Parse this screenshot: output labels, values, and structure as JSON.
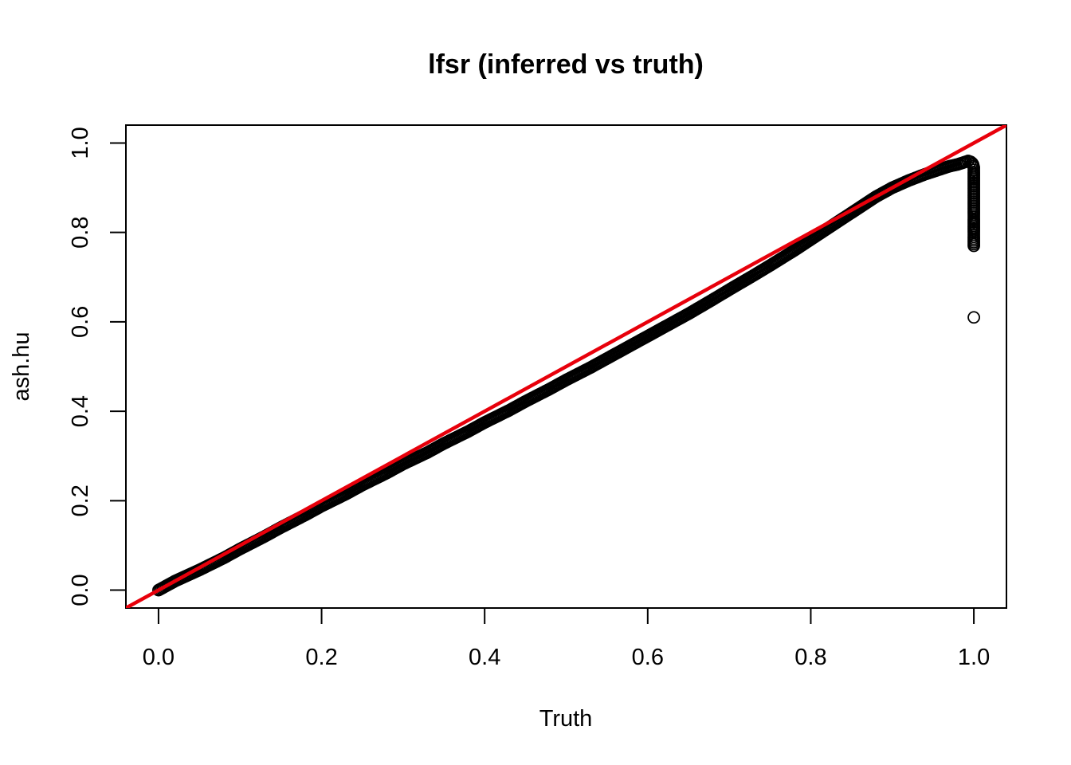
{
  "chart_data": {
    "type": "scatter",
    "title": "lfsr (inferred vs truth)",
    "xlabel": "Truth",
    "ylabel": "ash.hu",
    "xlim": [
      -0.04,
      1.04
    ],
    "ylim": [
      -0.04,
      1.04
    ],
    "x_ticks": [
      "0.0",
      "0.2",
      "0.4",
      "0.6",
      "0.8",
      "1.0"
    ],
    "y_ticks": [
      "0.0",
      "0.2",
      "0.4",
      "0.6",
      "0.8",
      "1.0"
    ],
    "grid": false,
    "legend": false,
    "marker": "open-circle",
    "point_color": "#000000",
    "reference_line": {
      "type": "identity",
      "intercept": 0,
      "slope": 1,
      "color": "#e8000b"
    },
    "series": [
      {
        "x": [
          0.0,
          0.02,
          0.05,
          0.08,
          0.1,
          0.13,
          0.15,
          0.18,
          0.2,
          0.23,
          0.25,
          0.28,
          0.3,
          0.33,
          0.35,
          0.38,
          0.4,
          0.43,
          0.45,
          0.48,
          0.5,
          0.53,
          0.55,
          0.58,
          0.6,
          0.63,
          0.65,
          0.68,
          0.7,
          0.73,
          0.75,
          0.78,
          0.8,
          0.83,
          0.85,
          0.88,
          0.9,
          0.92,
          0.94,
          0.96,
          0.97,
          0.98,
          0.99,
          0.993,
          0.996,
          0.998,
          0.999,
          1.0,
          1.0,
          1.0,
          1.0,
          1.0,
          1.0,
          1.0,
          1.0,
          1.0,
          1.0,
          1.0,
          1.0
        ],
        "y": [
          0.0,
          0.02,
          0.045,
          0.072,
          0.092,
          0.12,
          0.14,
          0.168,
          0.188,
          0.215,
          0.235,
          0.262,
          0.282,
          0.308,
          0.328,
          0.355,
          0.375,
          0.402,
          0.422,
          0.45,
          0.47,
          0.498,
          0.518,
          0.548,
          0.568,
          0.598,
          0.618,
          0.65,
          0.672,
          0.704,
          0.726,
          0.76,
          0.784,
          0.82,
          0.844,
          0.88,
          0.9,
          0.916,
          0.93,
          0.942,
          0.948,
          0.952,
          0.958,
          0.96,
          0.958,
          0.955,
          0.952,
          0.945,
          0.935,
          0.92,
          0.9,
          0.88,
          0.86,
          0.84,
          0.83,
          0.8,
          0.79,
          0.77,
          0.61
        ]
      }
    ]
  }
}
